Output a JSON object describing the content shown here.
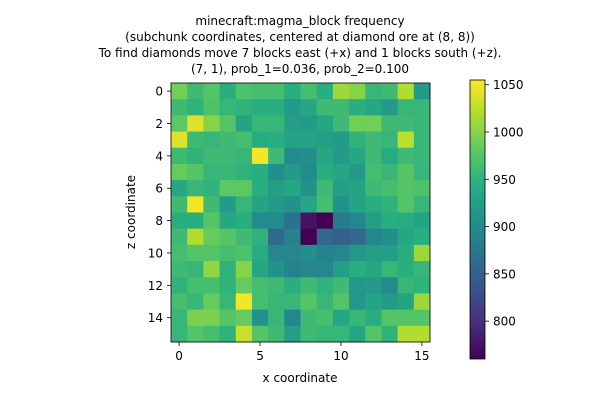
{
  "chart_data": {
    "type": "heatmap",
    "title_lines": [
      "minecraft:magma_block frequency",
      "(subchunk coordinates, centered at diamond ore at (8, 8))",
      "To find diamonds move 7 blocks east (+x) and 1 blocks south (+z).",
      "(7, 1), prob_1=0.036, prob_2=0.100"
    ],
    "xlabel": "x coordinate",
    "ylabel": "z coordinate",
    "x_ticks": [
      0,
      5,
      10,
      15
    ],
    "y_ticks": [
      0,
      2,
      4,
      6,
      8,
      10,
      12,
      14
    ],
    "x_tick_labels": [
      "0",
      "5",
      "10",
      "15"
    ],
    "y_tick_labels": [
      "0",
      "2",
      "4",
      "6",
      "8",
      "10",
      "12",
      "14"
    ],
    "colorbar": {
      "vmin": 760,
      "vmax": 1055,
      "ticks": [
        800,
        850,
        900,
        950,
        1000,
        1050
      ],
      "tick_labels": [
        "800",
        "850",
        "900",
        "950",
        "1000",
        "1050"
      ],
      "colormap": "viridis"
    },
    "grid_size": [
      16,
      16
    ],
    "values": [
      [
        990,
        960,
        975,
        945,
        970,
        965,
        965,
        945,
        965,
        945,
        1010,
        1000,
        955,
        960,
        1020,
        920
      ],
      [
        960,
        950,
        970,
        955,
        950,
        945,
        945,
        920,
        935,
        960,
        960,
        945,
        935,
        920,
        955,
        955
      ],
      [
        980,
        1040,
        1000,
        975,
        930,
        955,
        955,
        925,
        920,
        935,
        960,
        990,
        990,
        960,
        960,
        955
      ],
      [
        1040,
        960,
        955,
        960,
        965,
        940,
        945,
        930,
        930,
        925,
        920,
        950,
        960,
        955,
        1025,
        955
      ],
      [
        960,
        950,
        960,
        960,
        955,
        1050,
        960,
        900,
        905,
        935,
        920,
        935,
        960,
        940,
        960,
        955
      ],
      [
        985,
        975,
        955,
        955,
        950,
        945,
        905,
        920,
        900,
        945,
        935,
        920,
        965,
        955,
        975,
        955
      ],
      [
        935,
        955,
        950,
        980,
        980,
        945,
        925,
        935,
        910,
        960,
        925,
        930,
        960,
        965,
        975,
        970
      ],
      [
        960,
        1050,
        960,
        920,
        955,
        930,
        920,
        910,
        935,
        965,
        910,
        930,
        945,
        950,
        975,
        955
      ],
      [
        945,
        945,
        975,
        935,
        945,
        900,
        900,
        870,
        775,
        760,
        880,
        895,
        925,
        945,
        940,
        930
      ],
      [
        960,
        1020,
        985,
        975,
        960,
        950,
        860,
        890,
        760,
        860,
        850,
        860,
        895,
        905,
        935,
        945
      ],
      [
        965,
        975,
        975,
        965,
        970,
        940,
        895,
        895,
        905,
        890,
        895,
        915,
        925,
        925,
        945,
        1010
      ],
      [
        960,
        955,
        1005,
        950,
        1000,
        935,
        910,
        890,
        895,
        895,
        925,
        945,
        935,
        955,
        945,
        955
      ],
      [
        950,
        965,
        965,
        950,
        985,
        965,
        960,
        945,
        960,
        950,
        960,
        915,
        920,
        900,
        955,
        950
      ],
      [
        965,
        955,
        985,
        955,
        1050,
        965,
        955,
        955,
        975,
        955,
        975,
        915,
        930,
        920,
        930,
        1010
      ],
      [
        955,
        995,
        995,
        975,
        985,
        910,
        955,
        895,
        960,
        965,
        935,
        955,
        945,
        975,
        975,
        975
      ],
      [
        955,
        975,
        965,
        950,
        1030,
        975,
        960,
        925,
        960,
        955,
        955,
        935,
        975,
        950,
        1020,
        1020
      ]
    ]
  }
}
